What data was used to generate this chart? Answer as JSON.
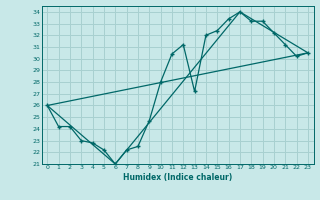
{
  "xlabel": "Humidex (Indice chaleur)",
  "bg_color": "#c8e8e8",
  "grid_color": "#a8d0d0",
  "line_color": "#006868",
  "xlim": [
    -0.5,
    23.5
  ],
  "ylim": [
    21,
    34.5
  ],
  "yticks": [
    21,
    22,
    23,
    24,
    25,
    26,
    27,
    28,
    29,
    30,
    31,
    32,
    33,
    34
  ],
  "xticks": [
    0,
    1,
    2,
    3,
    4,
    5,
    6,
    7,
    8,
    9,
    10,
    11,
    12,
    13,
    14,
    15,
    16,
    17,
    18,
    19,
    20,
    21,
    22,
    23
  ],
  "series1_x": [
    0,
    1,
    2,
    3,
    4,
    5,
    6,
    7,
    8,
    9,
    10,
    11,
    12,
    13,
    14,
    15,
    16,
    17,
    18,
    19,
    20,
    21,
    22,
    23
  ],
  "series1_y": [
    26.0,
    24.2,
    24.2,
    23.0,
    22.8,
    22.2,
    21.0,
    22.2,
    22.5,
    24.7,
    28.0,
    30.4,
    31.2,
    27.2,
    32.0,
    32.4,
    33.4,
    34.0,
    33.2,
    33.2,
    32.2,
    31.2,
    30.2,
    30.5
  ],
  "series2_x": [
    0,
    23
  ],
  "series2_y": [
    26.0,
    30.5
  ],
  "series3_x": [
    0,
    6,
    17,
    23
  ],
  "series3_y": [
    26.0,
    21.0,
    34.0,
    30.5
  ]
}
